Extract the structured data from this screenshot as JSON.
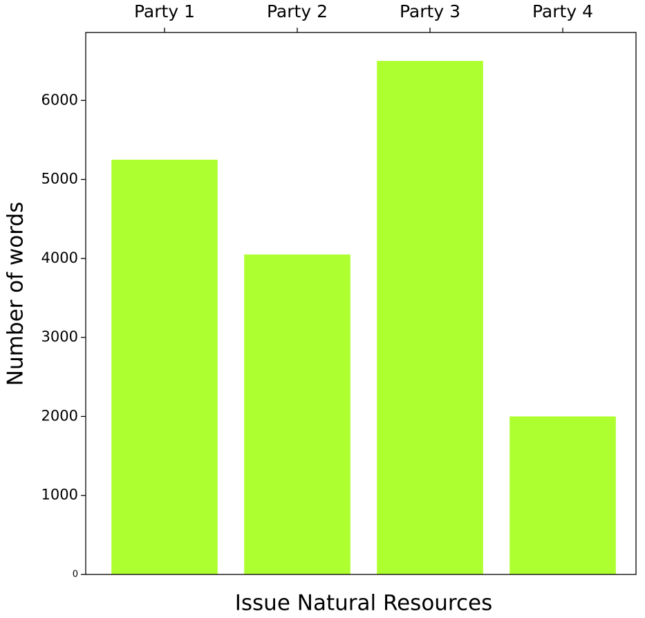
{
  "chart_data": {
    "type": "bar",
    "categories": [
      "Party 1",
      "Party 2",
      "Party 3",
      "Party 4"
    ],
    "values": [
      5250,
      4050,
      6500,
      2000
    ],
    "color": "#adff2f",
    "xlabel": "Issue Natural Resources",
    "ylabel": "Number of words",
    "ylim": [
      0,
      6860
    ],
    "yticks": [
      0,
      1000,
      2000,
      3000,
      4000,
      5000,
      6000
    ],
    "grid": false
  }
}
